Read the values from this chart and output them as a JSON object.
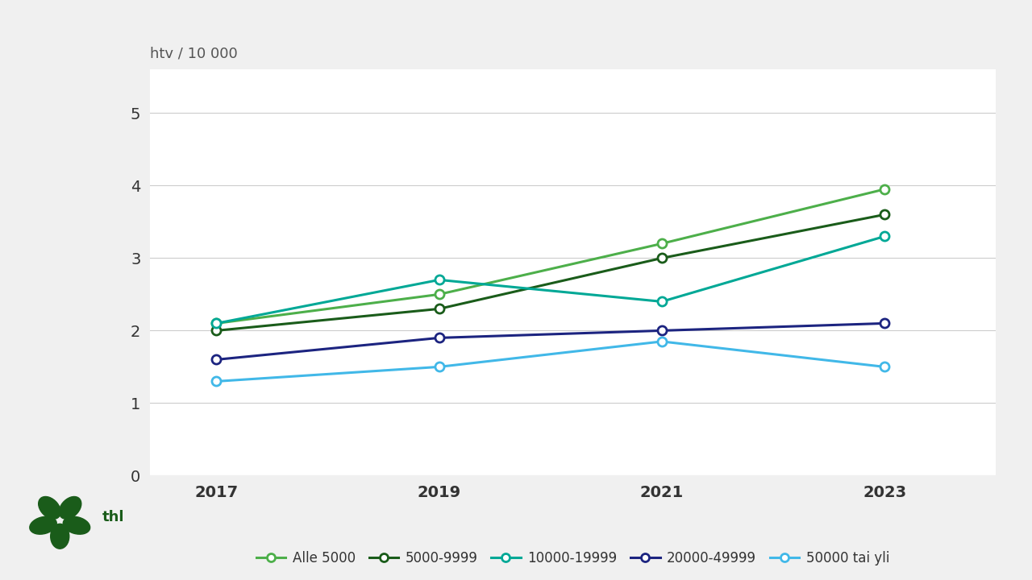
{
  "years": [
    2017,
    2019,
    2021,
    2023
  ],
  "series": [
    {
      "label": "Alle 5000",
      "values": [
        2.1,
        2.5,
        3.2,
        3.95
      ],
      "color": "#4daf4a",
      "linewidth": 2.2
    },
    {
      "label": "5000-9999",
      "values": [
        2.0,
        2.3,
        3.0,
        3.6
      ],
      "color": "#1a5c1a",
      "linewidth": 2.2
    },
    {
      "label": "10000-19999",
      "values": [
        2.1,
        2.7,
        2.4,
        3.3
      ],
      "color": "#00a896",
      "linewidth": 2.2
    },
    {
      "label": "20000-49999",
      "values": [
        1.6,
        1.9,
        2.0,
        2.1
      ],
      "color": "#1c2480",
      "linewidth": 2.2
    },
    {
      "label": "50000 tai yli",
      "values": [
        1.3,
        1.5,
        1.85,
        1.5
      ],
      "color": "#41b8e8",
      "linewidth": 2.2
    }
  ],
  "ylabel": "htv / 10 000",
  "ylim": [
    0,
    5.6
  ],
  "yticks": [
    0,
    1,
    2,
    3,
    4,
    5
  ],
  "background_color": "#eeeeee",
  "plot_background": "#ffffff",
  "outer_background": "#f0f0f0",
  "grid_color": "#cccccc",
  "marker_size": 8,
  "marker_facecolor": "white",
  "marker_linewidth": 2.0,
  "thl_color": "#1a5c1a"
}
